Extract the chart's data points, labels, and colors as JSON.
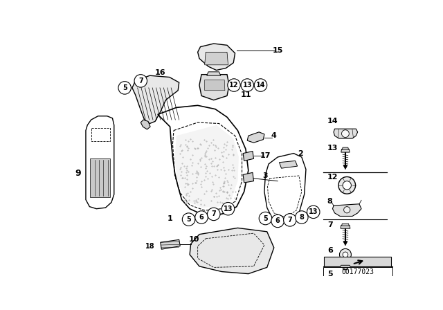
{
  "bg_color": "#ffffff",
  "diagram_id": "00177023",
  "text_color": "#000000",
  "line_color": "#000000",
  "circle_color": "#ffffff",
  "figsize": [
    6.4,
    4.48
  ],
  "dpi": 100
}
